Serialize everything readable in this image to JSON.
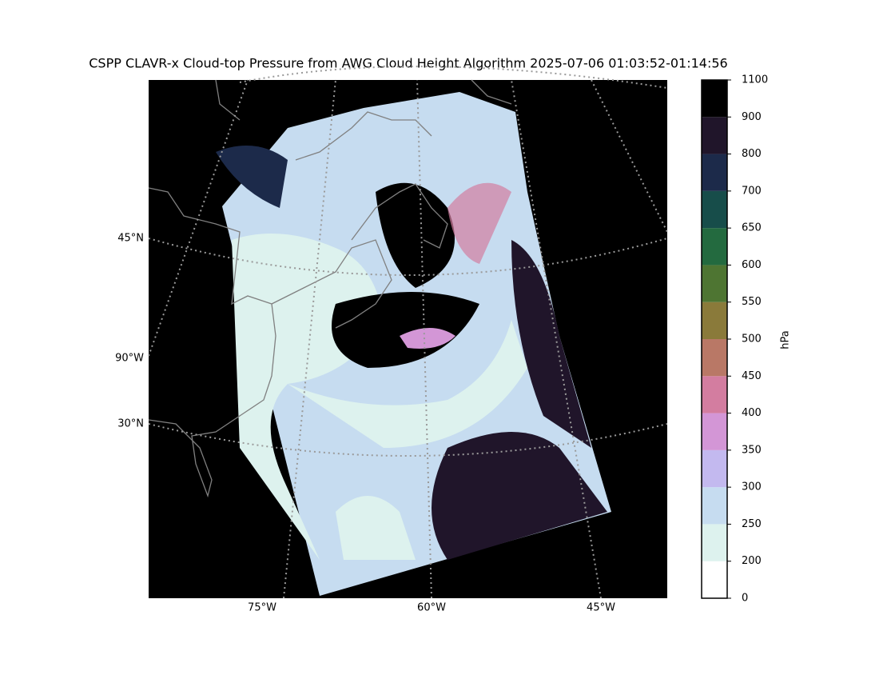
{
  "map": {
    "title": "CSPP CLAVR-x Cloud-top Pressure from AWG Cloud Height Algorithm 2025-07-06 01:03:52-01:14:56",
    "latitude_labels": [
      "45°N",
      "90°W",
      "30°N"
    ],
    "longitude_labels": [
      "75°W",
      "60°W",
      "45°W"
    ]
  },
  "colorbar": {
    "label": "hPa",
    "bounds": [
      0,
      200,
      250,
      300,
      350,
      400,
      450,
      500,
      550,
      600,
      650,
      700,
      800,
      900,
      1100
    ],
    "colors": [
      "#ffffff",
      "#ddf2ee",
      "#c6dcf0",
      "#c3b9ef",
      "#d396d6",
      "#d37da0",
      "#b97866",
      "#8a7a3a",
      "#4e7532",
      "#236a3f",
      "#174d4a",
      "#1c2a4a",
      "#20152a",
      "#000000"
    ]
  }
}
